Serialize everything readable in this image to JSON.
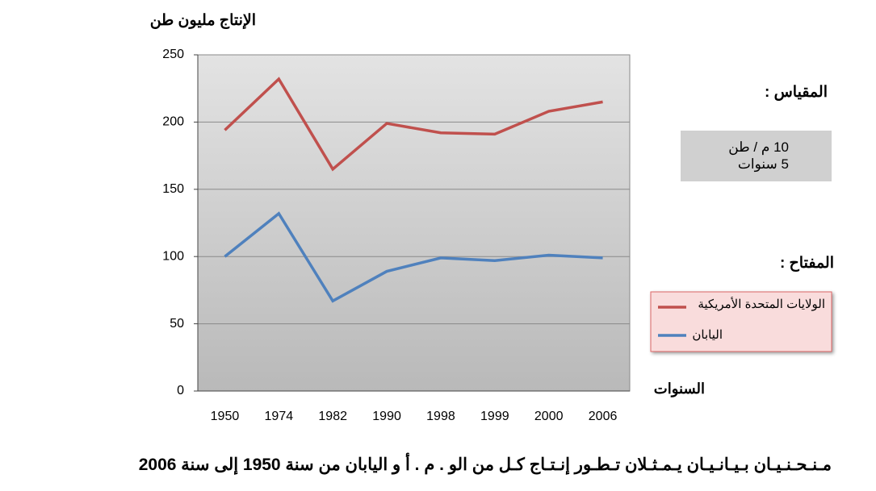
{
  "chart_data": {
    "type": "line",
    "y_label": "الإنتاج مليون طن",
    "x_label": "السنوات",
    "categories": [
      "1950",
      "1974",
      "1982",
      "1990",
      "1998",
      "1999",
      "2000",
      "2006"
    ],
    "series": [
      {
        "name": "الولايات المتحدة الأمريكية",
        "color": "#c0504d",
        "values": [
          194,
          232,
          165,
          199,
          192,
          191,
          208,
          215
        ]
      },
      {
        "name": "اليابان",
        "color": "#4f81bd",
        "values": [
          100,
          132,
          67,
          89,
          99,
          97,
          101,
          99
        ]
      }
    ],
    "ylim": [
      0,
      250
    ],
    "yticks": [
      0,
      50,
      100,
      150,
      200,
      250
    ],
    "grid": true,
    "scale_title": "المقياس :",
    "scale_lines": [
      "10 م / طن",
      "5 سنوات"
    ],
    "legend_title": "المفتاح :",
    "caption": "مـنـحـنـيـان بـيـانـيـان يـمـثـلان تـطـور إنـتـاج كـل من الو . م . أ و اليابان من سنة 1950 إلى سنة 2006"
  }
}
